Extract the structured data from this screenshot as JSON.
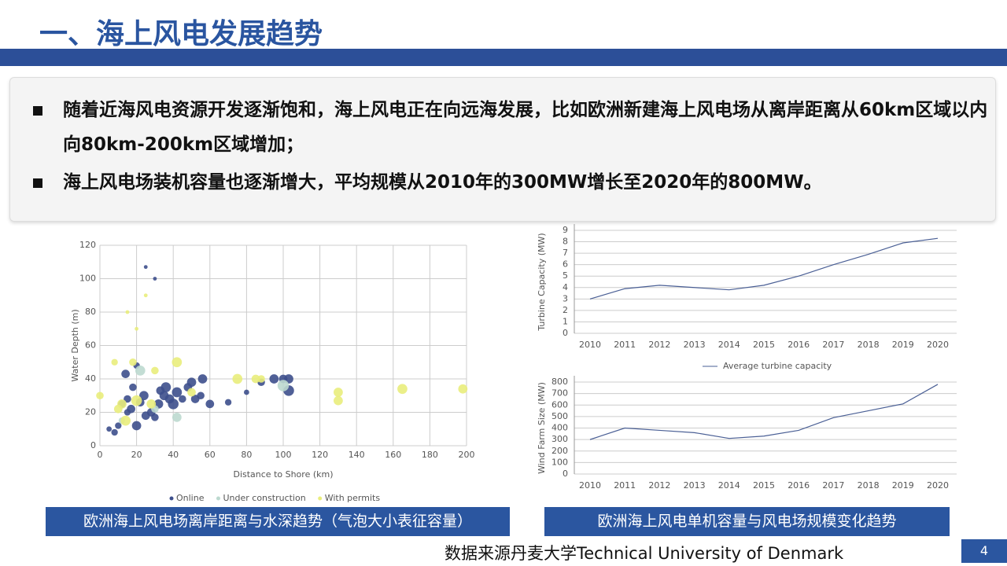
{
  "header": {
    "title": "一、海上风电发展趋势"
  },
  "bullets": [
    "随着近海风电资源开发逐渐饱和，海上风电正在向远海发展，比如欧洲新建海上风电场从离岸距离从60km区域以内向80km-200km区域增加；",
    "海上风电场装机容量也逐渐增大，平均规模从2010年的300MW增长至2020年的800MW。"
  ],
  "chart_data": [
    {
      "type": "scatter",
      "x_label": "Distance to Shore (km)",
      "y_label": "Water Depth (m)",
      "xlim": [
        0,
        200
      ],
      "xticks": [
        0,
        20,
        40,
        60,
        80,
        100,
        120,
        140,
        160,
        180,
        200
      ],
      "ylim": [
        0,
        120
      ],
      "yticks": [
        0,
        20,
        40,
        60,
        80,
        100,
        120
      ],
      "grid": true,
      "legend": "bottom",
      "series": [
        {
          "name": "Online",
          "color": "#3d4f8c",
          "x": [
            5,
            8,
            10,
            12,
            14,
            15,
            17,
            18,
            20,
            22,
            24,
            25,
            28,
            30,
            32,
            33,
            35,
            36,
            38,
            40,
            42,
            45,
            48,
            50,
            52,
            55,
            56,
            60,
            70,
            80,
            88,
            95,
            100,
            103,
            103,
            25,
            30,
            20,
            15
          ],
          "y": [
            10,
            8,
            12,
            25,
            43,
            28,
            22,
            35,
            12,
            26,
            30,
            18,
            20,
            17,
            25,
            33,
            30,
            35,
            28,
            25,
            32,
            28,
            35,
            38,
            28,
            30,
            40,
            25,
            26,
            32,
            38,
            40,
            40,
            33,
            40,
            107,
            100,
            48,
            20
          ],
          "size": [
            2,
            3,
            3,
            4,
            5,
            4,
            5,
            4,
            6,
            5,
            6,
            5,
            5,
            4,
            6,
            5,
            6,
            7,
            6,
            8,
            7,
            4,
            5,
            6,
            5,
            4,
            6,
            5,
            3,
            2,
            4,
            6,
            5,
            8,
            6,
            1,
            1,
            3,
            3
          ]
        },
        {
          "name": "Under construction",
          "color": "#bcd9cf",
          "x": [
            22,
            42,
            100,
            12,
            30
          ],
          "y": [
            45,
            17,
            36,
            15,
            22
          ],
          "size": [
            7,
            6,
            9,
            3,
            4
          ]
        },
        {
          "name": "With permits",
          "color": "#e9ed7c",
          "x": [
            0,
            8,
            10,
            12,
            14,
            18,
            20,
            28,
            30,
            42,
            50,
            75,
            85,
            88,
            130,
            130,
            165,
            198,
            25,
            15,
            20
          ],
          "y": [
            30,
            50,
            22,
            25,
            15,
            50,
            27,
            25,
            45,
            50,
            32,
            40,
            40,
            40,
            32,
            27,
            34,
            34,
            90,
            80,
            70
          ],
          "size": [
            4,
            3,
            5,
            6,
            7,
            4,
            8,
            6,
            4,
            7,
            5,
            7,
            5,
            4,
            6,
            6,
            7,
            6,
            1,
            1,
            1
          ]
        }
      ]
    },
    {
      "type": "line",
      "y_label": "Turbine Capacity (MW)",
      "categories": [
        "2010",
        "2011",
        "2012",
        "2013",
        "2014",
        "2015",
        "2016",
        "2017",
        "2018",
        "2019",
        "2020"
      ],
      "ylim": [
        0,
        9
      ],
      "yticks": [
        0,
        1,
        2,
        3,
        4,
        5,
        6,
        7,
        8,
        9
      ],
      "grid": true,
      "legend": "bottom",
      "series": [
        {
          "name": "Average turbine capacity",
          "color": "#4a5f95",
          "values": [
            3.0,
            3.9,
            4.2,
            4.0,
            3.8,
            4.2,
            5.0,
            6.0,
            6.9,
            7.9,
            8.3
          ]
        }
      ]
    },
    {
      "type": "line",
      "y_label": "Wind Farm Size (MW)",
      "categories": [
        "2010",
        "2011",
        "2012",
        "2013",
        "2014",
        "2015",
        "2016",
        "2017",
        "2018",
        "2019",
        "2020"
      ],
      "ylim": [
        0,
        800
      ],
      "yticks": [
        0,
        100,
        200,
        300,
        400,
        500,
        600,
        700,
        800
      ],
      "grid": true,
      "series": [
        {
          "color": "#4a5f95",
          "values": [
            300,
            400,
            380,
            360,
            310,
            330,
            380,
            490,
            550,
            610,
            780
          ]
        }
      ]
    }
  ],
  "captions": [
    "欧洲海上风电场离岸距离与水深趋势（气泡大小表征容量）",
    "欧洲海上风电单机容量与风电场规模变化趋势"
  ],
  "source": "数据来源丹麦大学Technical University of Denmark",
  "page_number": "4"
}
